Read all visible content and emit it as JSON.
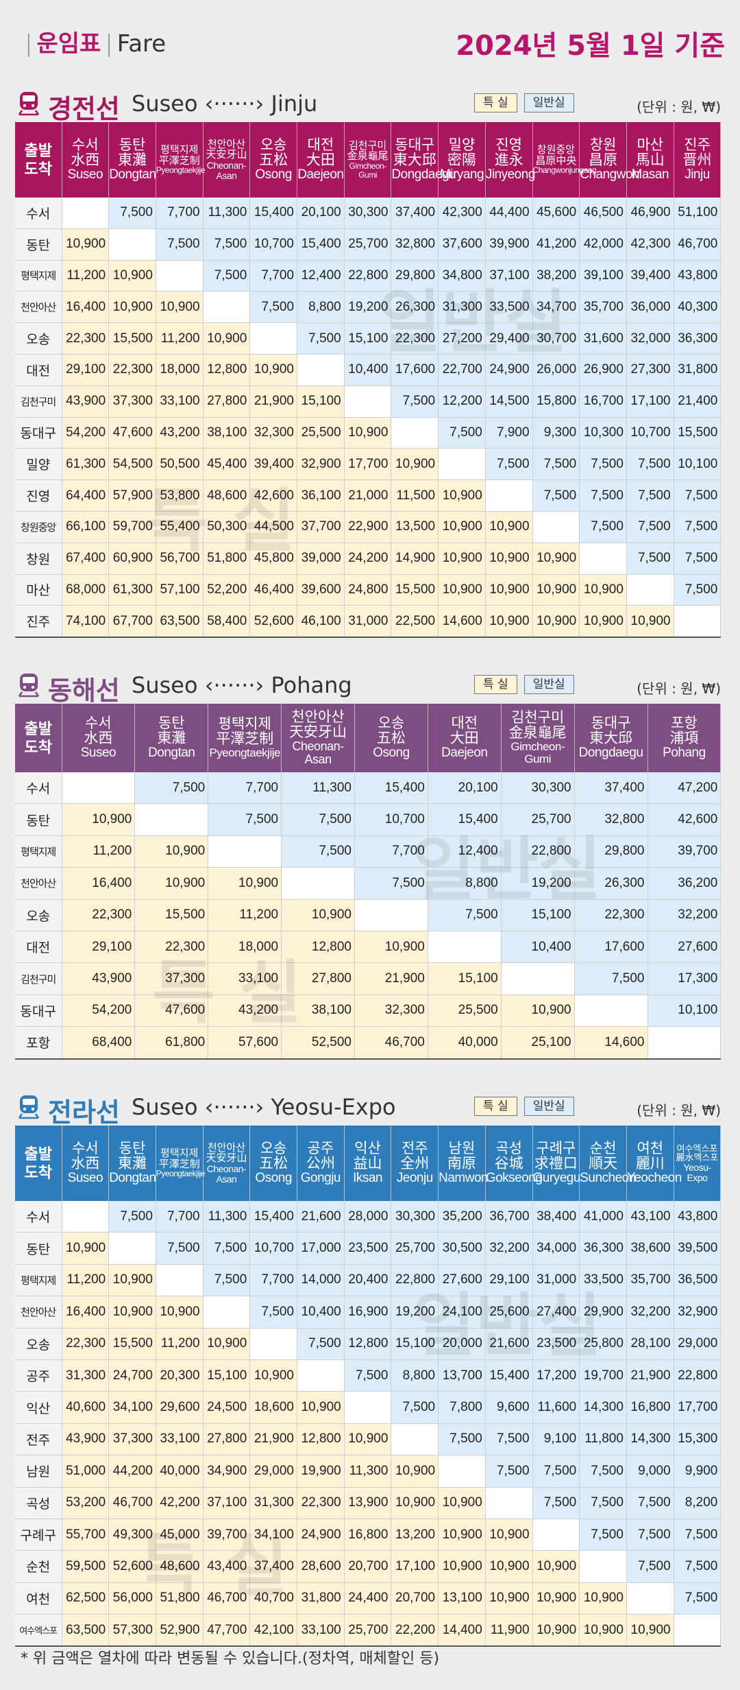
{
  "header": {
    "label_ko": "운임표",
    "label_en": "Fare",
    "date": "2024년 5월 1일 기준"
  },
  "legend": {
    "special": "특 실",
    "general": "일반실"
  },
  "unit": "(단위 : 원, ₩)",
  "corner": {
    "dep": "출발",
    "arr": "도착"
  },
  "watermark": {
    "general": "일반실",
    "special": "특 실"
  },
  "colors": {
    "gyeongjeon": "#a8175e",
    "donghae": "#7e4d82",
    "jeolla": "#2e7cba",
    "special_cell": "#fdf1d6",
    "general_cell": "#dcedf9"
  },
  "sections": [
    {
      "id": "gyeongjeon",
      "title": "경전선",
      "route": "Suseo ‹······› Jinju",
      "stations": [
        {
          "ko": "수서",
          "hanja": "水西",
          "en": "Suseo"
        },
        {
          "ko": "동탄",
          "hanja": "東灘",
          "en": "Dongtan"
        },
        {
          "ko": "평택지제",
          "hanja": "平澤芝制",
          "en": "Pyeongtaekjije"
        },
        {
          "ko": "천안아산",
          "hanja": "天安牙山",
          "en": "Cheonan-Asan"
        },
        {
          "ko": "오송",
          "hanja": "五松",
          "en": "Osong"
        },
        {
          "ko": "대전",
          "hanja": "大田",
          "en": "Daejeon"
        },
        {
          "ko": "김천구미",
          "hanja": "金泉龜尾",
          "en": "Gimcheon-Gumi"
        },
        {
          "ko": "동대구",
          "hanja": "東大邱",
          "en": "Dongdaegu"
        },
        {
          "ko": "밀양",
          "hanja": "密陽",
          "en": "Miryang"
        },
        {
          "ko": "진영",
          "hanja": "進永",
          "en": "Jinyeong"
        },
        {
          "ko": "창원중앙",
          "hanja": "昌原中央",
          "en": "Changwonjungang"
        },
        {
          "ko": "창원",
          "hanja": "昌原",
          "en": "Changwon"
        },
        {
          "ko": "마산",
          "hanja": "馬山",
          "en": "Masan"
        },
        {
          "ko": "진주",
          "hanja": "晋州",
          "en": "Jinju"
        }
      ],
      "rows": [
        {
          "label": "수서",
          "cells": [
            "",
            "7,500",
            "7,700",
            "11,300",
            "15,400",
            "20,100",
            "30,300",
            "37,400",
            "42,300",
            "44,400",
            "45,600",
            "46,500",
            "46,900",
            "51,100"
          ]
        },
        {
          "label": "동탄",
          "cells": [
            "10,900",
            "",
            "7,500",
            "7,500",
            "10,700",
            "15,400",
            "25,700",
            "32,800",
            "37,600",
            "39,900",
            "41,200",
            "42,000",
            "42,300",
            "46,700"
          ]
        },
        {
          "label": "평택지제",
          "cells": [
            "11,200",
            "10,900",
            "",
            "7,500",
            "7,700",
            "12,400",
            "22,800",
            "29,800",
            "34,800",
            "37,100",
            "38,200",
            "39,100",
            "39,400",
            "43,800"
          ]
        },
        {
          "label": "천안아산",
          "cells": [
            "16,400",
            "10,900",
            "10,900",
            "",
            "7,500",
            "8,800",
            "19,200",
            "26,300",
            "31,300",
            "33,500",
            "34,700",
            "35,700",
            "36,000",
            "40,300"
          ]
        },
        {
          "label": "오송",
          "cells": [
            "22,300",
            "15,500",
            "11,200",
            "10,900",
            "",
            "7,500",
            "15,100",
            "22,300",
            "27,200",
            "29,400",
            "30,700",
            "31,600",
            "32,000",
            "36,300"
          ]
        },
        {
          "label": "대전",
          "cells": [
            "29,100",
            "22,300",
            "18,000",
            "12,800",
            "10,900",
            "",
            "10,400",
            "17,600",
            "22,700",
            "24,900",
            "26,000",
            "26,900",
            "27,300",
            "31,800"
          ]
        },
        {
          "label": "김천구미",
          "cells": [
            "43,900",
            "37,300",
            "33,100",
            "27,800",
            "21,900",
            "15,100",
            "",
            "7,500",
            "12,200",
            "14,500",
            "15,800",
            "16,700",
            "17,100",
            "21,400"
          ]
        },
        {
          "label": "동대구",
          "cells": [
            "54,200",
            "47,600",
            "43,200",
            "38,100",
            "32,300",
            "25,500",
            "10,900",
            "",
            "7,500",
            "7,900",
            "9,300",
            "10,300",
            "10,700",
            "15,500"
          ]
        },
        {
          "label": "밀양",
          "cells": [
            "61,300",
            "54,500",
            "50,500",
            "45,400",
            "39,400",
            "32,900",
            "17,700",
            "10,900",
            "",
            "7,500",
            "7,500",
            "7,500",
            "7,500",
            "10,100"
          ]
        },
        {
          "label": "진영",
          "cells": [
            "64,400",
            "57,900",
            "53,800",
            "48,600",
            "42,600",
            "36,100",
            "21,000",
            "11,500",
            "10,900",
            "",
            "7,500",
            "7,500",
            "7,500",
            "7,500"
          ]
        },
        {
          "label": "창원중앙",
          "cells": [
            "66,100",
            "59,700",
            "55,400",
            "50,300",
            "44,500",
            "37,700",
            "22,900",
            "13,500",
            "10,900",
            "10,900",
            "",
            "7,500",
            "7,500",
            "7,500"
          ]
        },
        {
          "label": "창원",
          "cells": [
            "67,400",
            "60,900",
            "56,700",
            "51,800",
            "45,800",
            "39,000",
            "24,200",
            "14,900",
            "10,900",
            "10,900",
            "10,900",
            "",
            "7,500",
            "7,500"
          ]
        },
        {
          "label": "마산",
          "cells": [
            "68,000",
            "61,300",
            "57,100",
            "52,200",
            "46,400",
            "39,600",
            "24,800",
            "15,500",
            "10,900",
            "10,900",
            "10,900",
            "10,900",
            "",
            "7,500"
          ]
        },
        {
          "label": "진주",
          "cells": [
            "74,100",
            "67,700",
            "63,500",
            "58,400",
            "52,600",
            "46,100",
            "31,000",
            "22,500",
            "14,600",
            "10,900",
            "10,900",
            "10,900",
            "10,900",
            ""
          ]
        }
      ]
    },
    {
      "id": "donghae",
      "title": "동해선",
      "route": "Suseo ‹······› Pohang",
      "stations": [
        {
          "ko": "수서",
          "hanja": "水西",
          "en": "Suseo"
        },
        {
          "ko": "동탄",
          "hanja": "東灘",
          "en": "Dongtan"
        },
        {
          "ko": "평택지제",
          "hanja": "平澤芝制",
          "en": "Pyeongtaekjije"
        },
        {
          "ko": "천안아산",
          "hanja": "天安牙山",
          "en": "Cheonan-Asan"
        },
        {
          "ko": "오송",
          "hanja": "五松",
          "en": "Osong"
        },
        {
          "ko": "대전",
          "hanja": "大田",
          "en": "Daejeon"
        },
        {
          "ko": "김천구미",
          "hanja": "金泉龜尾",
          "en": "Gimcheon-Gumi"
        },
        {
          "ko": "동대구",
          "hanja": "東大邱",
          "en": "Dongdaegu"
        },
        {
          "ko": "포항",
          "hanja": "浦項",
          "en": "Pohang"
        }
      ],
      "rows": [
        {
          "label": "수서",
          "cells": [
            "",
            "7,500",
            "7,700",
            "11,300",
            "15,400",
            "20,100",
            "30,300",
            "37,400",
            "47,200"
          ]
        },
        {
          "label": "동탄",
          "cells": [
            "10,900",
            "",
            "7,500",
            "7,500",
            "10,700",
            "15,400",
            "25,700",
            "32,800",
            "42,600"
          ]
        },
        {
          "label": "평택지제",
          "cells": [
            "11,200",
            "10,900",
            "",
            "7,500",
            "7,700",
            "12,400",
            "22,800",
            "29,800",
            "39,700"
          ]
        },
        {
          "label": "천안아산",
          "cells": [
            "16,400",
            "10,900",
            "10,900",
            "",
            "7,500",
            "8,800",
            "19,200",
            "26,300",
            "36,200"
          ]
        },
        {
          "label": "오송",
          "cells": [
            "22,300",
            "15,500",
            "11,200",
            "10,900",
            "",
            "7,500",
            "15,100",
            "22,300",
            "32,200"
          ]
        },
        {
          "label": "대전",
          "cells": [
            "29,100",
            "22,300",
            "18,000",
            "12,800",
            "10,900",
            "",
            "10,400",
            "17,600",
            "27,600"
          ]
        },
        {
          "label": "김천구미",
          "cells": [
            "43,900",
            "37,300",
            "33,100",
            "27,800",
            "21,900",
            "15,100",
            "",
            "7,500",
            "17,300"
          ]
        },
        {
          "label": "동대구",
          "cells": [
            "54,200",
            "47,600",
            "43,200",
            "38,100",
            "32,300",
            "25,500",
            "10,900",
            "",
            "10,100"
          ]
        },
        {
          "label": "포항",
          "cells": [
            "68,400",
            "61,800",
            "57,600",
            "52,500",
            "46,700",
            "40,000",
            "25,100",
            "14,600",
            ""
          ]
        }
      ]
    },
    {
      "id": "jeolla",
      "title": "전라선",
      "route": "Suseo ‹······› Yeosu-Expo",
      "stations": [
        {
          "ko": "수서",
          "hanja": "水西",
          "en": "Suseo"
        },
        {
          "ko": "동탄",
          "hanja": "東灘",
          "en": "Dongtan"
        },
        {
          "ko": "평택지제",
          "hanja": "平澤芝制",
          "en": "Pyeongtaekjije"
        },
        {
          "ko": "천안아산",
          "hanja": "天安牙山",
          "en": "Cheonan-Asan"
        },
        {
          "ko": "오송",
          "hanja": "五松",
          "en": "Osong"
        },
        {
          "ko": "공주",
          "hanja": "公州",
          "en": "Gongju"
        },
        {
          "ko": "익산",
          "hanja": "益山",
          "en": "Iksan"
        },
        {
          "ko": "전주",
          "hanja": "全州",
          "en": "Jeonju"
        },
        {
          "ko": "남원",
          "hanja": "南原",
          "en": "Namwon"
        },
        {
          "ko": "곡성",
          "hanja": "谷城",
          "en": "Gokseong"
        },
        {
          "ko": "구례구",
          "hanja": "求禮口",
          "en": "Guryegu"
        },
        {
          "ko": "순천",
          "hanja": "順天",
          "en": "Suncheon"
        },
        {
          "ko": "여천",
          "hanja": "麗川",
          "en": "Yeocheon"
        },
        {
          "ko": "여수엑스포",
          "hanja": "麗水엑스포",
          "en": "Yeosu-Expo"
        }
      ],
      "rows": [
        {
          "label": "수서",
          "cells": [
            "",
            "7,500",
            "7,700",
            "11,300",
            "15,400",
            "21,600",
            "28,000",
            "30,300",
            "35,200",
            "36,700",
            "38,400",
            "41,000",
            "43,100",
            "43,800"
          ]
        },
        {
          "label": "동탄",
          "cells": [
            "10,900",
            "",
            "7,500",
            "7,500",
            "10,700",
            "17,000",
            "23,500",
            "25,700",
            "30,500",
            "32,200",
            "34,000",
            "36,300",
            "38,600",
            "39,500"
          ]
        },
        {
          "label": "평택지제",
          "cells": [
            "11,200",
            "10,900",
            "",
            "7,500",
            "7,700",
            "14,000",
            "20,400",
            "22,800",
            "27,600",
            "29,100",
            "31,000",
            "33,500",
            "35,700",
            "36,500"
          ]
        },
        {
          "label": "천안아산",
          "cells": [
            "16,400",
            "10,900",
            "10,900",
            "",
            "7,500",
            "10,400",
            "16,900",
            "19,200",
            "24,100",
            "25,600",
            "27,400",
            "29,900",
            "32,200",
            "32,900"
          ]
        },
        {
          "label": "오송",
          "cells": [
            "22,300",
            "15,500",
            "11,200",
            "10,900",
            "",
            "7,500",
            "12,800",
            "15,100",
            "20,000",
            "21,600",
            "23,500",
            "25,800",
            "28,100",
            "29,000"
          ]
        },
        {
          "label": "공주",
          "cells": [
            "31,300",
            "24,700",
            "20,300",
            "15,100",
            "10,900",
            "",
            "7,500",
            "8,800",
            "13,700",
            "15,400",
            "17,200",
            "19,700",
            "21,900",
            "22,800"
          ]
        },
        {
          "label": "익산",
          "cells": [
            "40,600",
            "34,100",
            "29,600",
            "24,500",
            "18,600",
            "10,900",
            "",
            "7,500",
            "7,800",
            "9,600",
            "11,600",
            "14,300",
            "16,800",
            "17,700"
          ]
        },
        {
          "label": "전주",
          "cells": [
            "43,900",
            "37,300",
            "33,100",
            "27,800",
            "21,900",
            "12,800",
            "10,900",
            "",
            "7,500",
            "7,500",
            "9,100",
            "11,800",
            "14,300",
            "15,300"
          ]
        },
        {
          "label": "남원",
          "cells": [
            "51,000",
            "44,200",
            "40,000",
            "34,900",
            "29,000",
            "19,900",
            "11,300",
            "10,900",
            "",
            "7,500",
            "7,500",
            "7,500",
            "9,000",
            "9,900"
          ]
        },
        {
          "label": "곡성",
          "cells": [
            "53,200",
            "46,700",
            "42,200",
            "37,100",
            "31,300",
            "22,300",
            "13,900",
            "10,900",
            "10,900",
            "",
            "7,500",
            "7,500",
            "7,500",
            "8,200"
          ]
        },
        {
          "label": "구례구",
          "cells": [
            "55,700",
            "49,300",
            "45,000",
            "39,700",
            "34,100",
            "24,900",
            "16,800",
            "13,200",
            "10,900",
            "10,900",
            "",
            "7,500",
            "7,500",
            "7,500"
          ]
        },
        {
          "label": "순천",
          "cells": [
            "59,500",
            "52,600",
            "48,600",
            "43,400",
            "37,400",
            "28,600",
            "20,700",
            "17,100",
            "10,900",
            "10,900",
            "10,900",
            "",
            "7,500",
            "7,500"
          ]
        },
        {
          "label": "여천",
          "cells": [
            "62,500",
            "56,000",
            "51,800",
            "46,700",
            "40,700",
            "31,800",
            "24,400",
            "20,700",
            "13,100",
            "10,900",
            "10,900",
            "10,900",
            "",
            "7,500"
          ]
        },
        {
          "label": "여수엑스포",
          "cells": [
            "63,500",
            "57,300",
            "52,900",
            "47,700",
            "42,100",
            "33,100",
            "25,700",
            "22,200",
            "14,400",
            "11,900",
            "10,900",
            "10,900",
            "10,900",
            ""
          ]
        }
      ]
    }
  ],
  "footnote": "* 위 금액은 열차에 따라 변동될 수 있습니다.(정차역, 매체할인 등)"
}
